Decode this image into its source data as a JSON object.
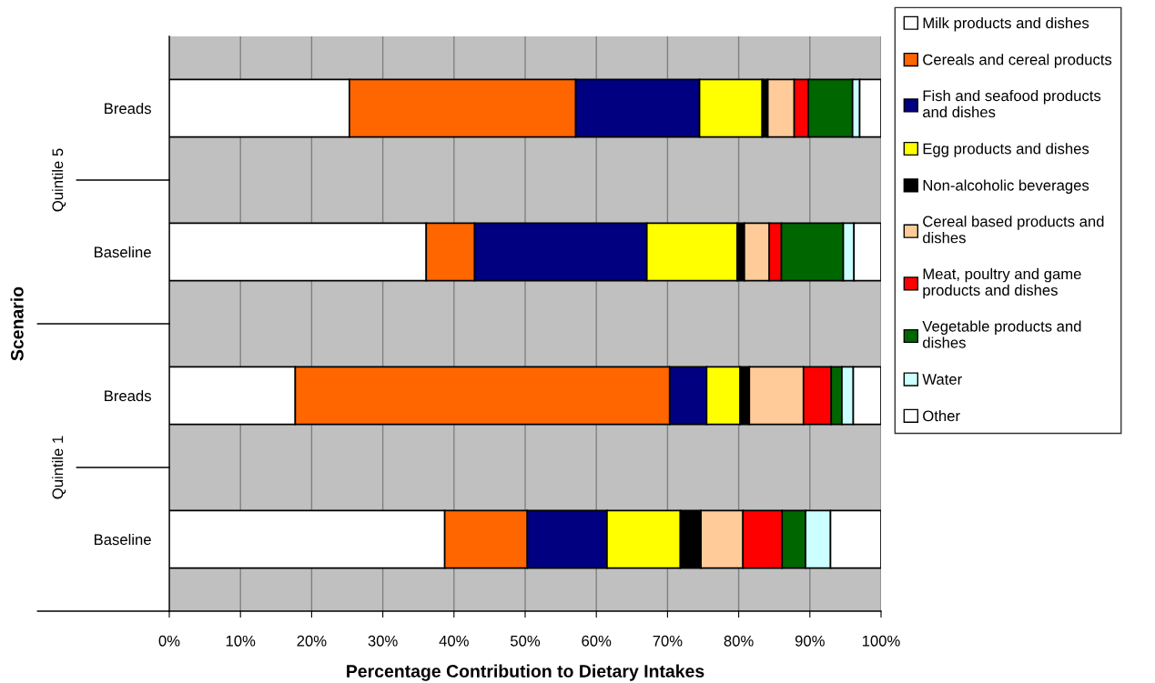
{
  "chart_data": {
    "type": "bar",
    "orientation": "horizontal",
    "stacked": true,
    "xlabel": "Percentage Contribution to Dietary Intakes",
    "ylabel": "Scenario",
    "categories": [
      "Breads",
      "Baseline",
      "Breads",
      "Baseline"
    ],
    "annotations": [
      "Quintile 5",
      "Quintile 1"
    ],
    "series": [
      {
        "name": "Milk products and dishes",
        "color": "#ffffff",
        "values": [
          25.3,
          36.1,
          17.7,
          38.7
        ]
      },
      {
        "name": "Cereals and cereal products",
        "color": "#ff6600",
        "values": [
          31.8,
          6.8,
          52.6,
          11.6
        ]
      },
      {
        "name": "Fish and seafood products\nand dishes",
        "color": "#000080",
        "values": [
          17.4,
          24.2,
          5.2,
          11.2
        ]
      },
      {
        "name": "Egg products and dishes",
        "color": "#ffff00",
        "values": [
          8.8,
          12.7,
          4.7,
          10.3
        ]
      },
      {
        "name": "Non-alcoholic beverages",
        "color": "#000000",
        "values": [
          0.8,
          1.0,
          1.3,
          2.9
        ]
      },
      {
        "name": "Cereal based products and\ndishes",
        "color": "#ffcc99",
        "values": [
          3.7,
          3.5,
          7.6,
          5.9
        ]
      },
      {
        "name": "Meat, poultry and game\nproducts and dishes",
        "color": "#ff0000",
        "values": [
          2.0,
          1.7,
          3.9,
          5.5
        ]
      },
      {
        "name": "Vegetable products and\ndishes",
        "color": "#006600",
        "values": [
          6.2,
          8.7,
          1.5,
          3.3
        ]
      },
      {
        "name": "Water",
        "color": "#ccffff",
        "values": [
          1.0,
          1.5,
          1.6,
          3.5
        ]
      },
      {
        "name": "Other",
        "color": "#ffffff",
        "values": [
          3.0,
          3.8,
          3.9,
          7.1
        ]
      }
    ],
    "xlim": [
      0,
      100
    ],
    "xticks": [
      {
        "value": 0,
        "label": "0%"
      },
      {
        "value": 10,
        "label": "10%"
      },
      {
        "value": 20,
        "label": "20%"
      },
      {
        "value": 30,
        "label": "30%"
      },
      {
        "value": 40,
        "label": "40%"
      },
      {
        "value": 50,
        "label": "50%"
      },
      {
        "value": 60,
        "label": "60%"
      },
      {
        "value": 70,
        "label": "70%"
      },
      {
        "value": 80,
        "label": "80%"
      },
      {
        "value": 90,
        "label": "90%"
      },
      {
        "value": 100,
        "label": "100%"
      }
    ],
    "grid": "x",
    "legend": "right"
  }
}
